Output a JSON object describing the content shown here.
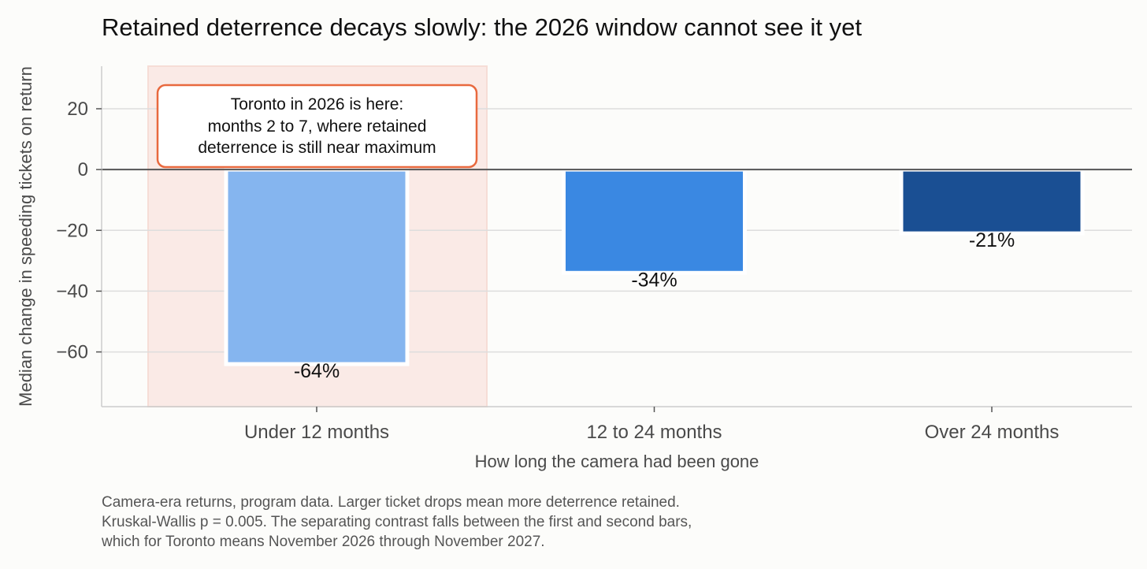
{
  "chart_data": {
    "type": "bar",
    "title": "Retained deterrence decays slowly: the 2026 window cannot see it yet",
    "xlabel": "How long the camera had been gone",
    "ylabel": "Median change in speeding tickets on return",
    "categories": [
      "Under 12 months",
      "12 to 24 months",
      "Over 24 months"
    ],
    "values": [
      -64,
      -34,
      -21
    ],
    "value_labels": [
      "-64%",
      "-34%",
      "-21%"
    ],
    "colors": [
      "#85b5ef",
      "#3a88e2",
      "#1a4f93"
    ],
    "ylim": [
      -78,
      34
    ],
    "yticks": [
      20,
      0,
      -20,
      -40,
      -60
    ],
    "ytick_labels": [
      "20",
      "0",
      "−20",
      "−40",
      "−60"
    ],
    "grid": "horizontal",
    "highlight": {
      "category": "Under 12 months",
      "color": "#faeae6"
    },
    "annotation": {
      "lines": [
        "Toronto in 2026 is here:",
        "months 2 to 7, where retained",
        "deterrence is still near maximum"
      ],
      "border_color": "#e8693e"
    },
    "caption": [
      "Camera-era returns, program data. Larger ticket drops mean more deterrence retained.",
      "Kruskal-Wallis p = 0.005. The separating contrast falls between the first and second bars,",
      "which for Toronto means November 2026 through November 2027."
    ]
  }
}
